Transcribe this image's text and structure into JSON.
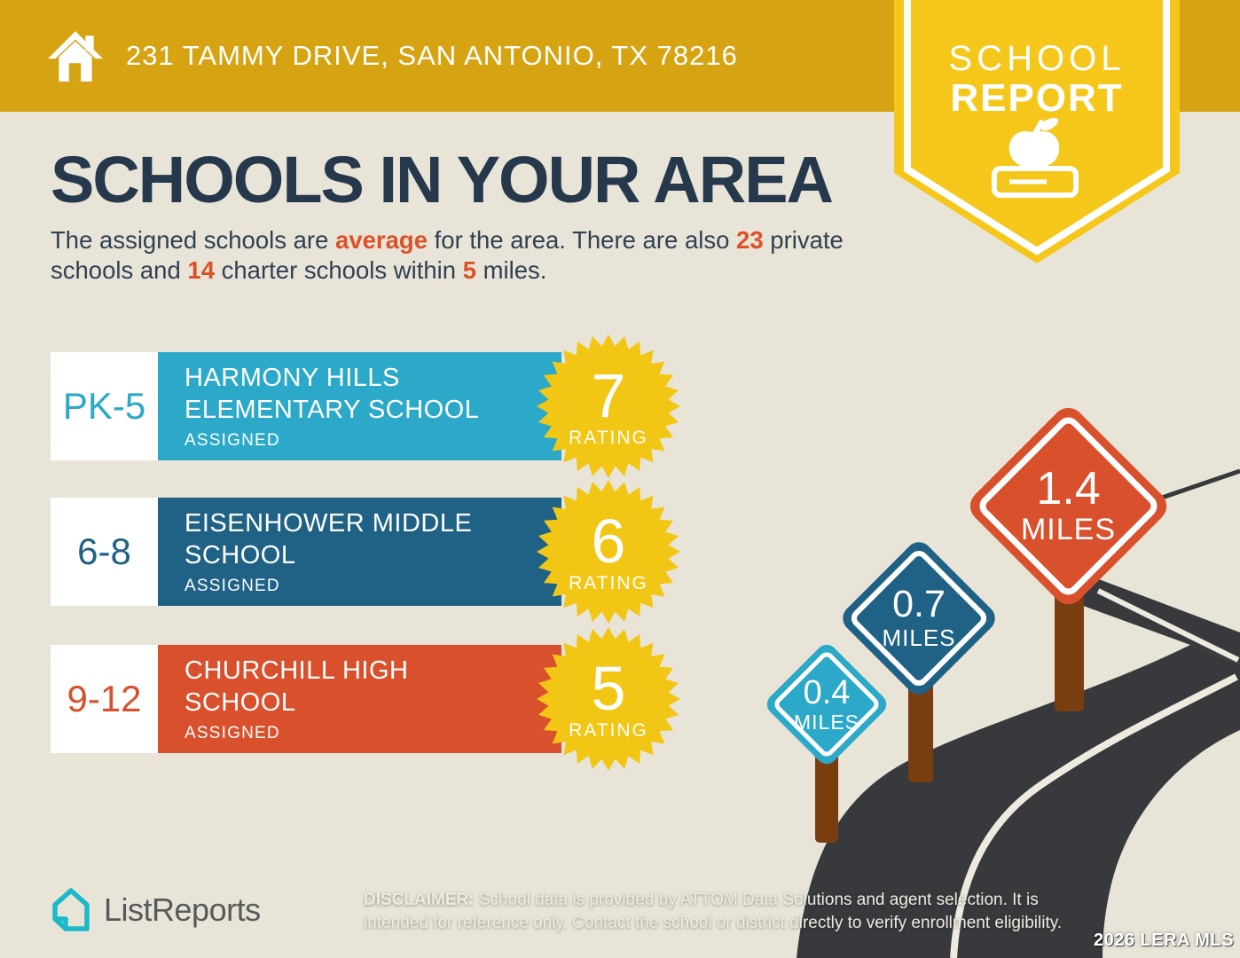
{
  "colors": {
    "background": "#E9E4D8",
    "header_gold": "#D6A413",
    "badge_yellow": "#F5C71B",
    "rating_badge": "#F2C614",
    "navy": "#26384B",
    "accent_orange": "#DC5228",
    "elementary": "#2CA9C8",
    "middle": "#1F6286",
    "high": "#D9502C",
    "road": "#37393C",
    "road_line": "#EFEAE0",
    "post_brown": "#7A3D10",
    "logo_teal": "#1CB9C8",
    "white": "#FFFFFF"
  },
  "header": {
    "address": "231 TAMMY DRIVE, SAN ANTONIO, TX 78216",
    "badge_line1": "SCHOOL",
    "badge_line2": "REPORT"
  },
  "main": {
    "title": "SCHOOLS IN YOUR AREA",
    "subtitle": {
      "seg1": "The assigned schools are ",
      "seg2": "average",
      "seg3": " for the area. There are also ",
      "seg4": "23",
      "seg5": " private schools and ",
      "seg6": "14",
      "seg7": " charter schools within ",
      "seg8": "5",
      "seg9": " miles."
    }
  },
  "schools": [
    {
      "grades": "PK-5",
      "name_line1": "HARMONY HILLS",
      "name_line2": "ELEMENTARY SCHOOL",
      "status": "ASSIGNED",
      "rating": "7",
      "rating_label": "RATING",
      "color": "#2CA9C8"
    },
    {
      "grades": "6-8",
      "name_line1": "EISENHOWER MIDDLE",
      "name_line2": "SCHOOL",
      "status": "ASSIGNED",
      "rating": "6",
      "rating_label": "RATING",
      "color": "#1F6286"
    },
    {
      "grades": "9-12",
      "name_line1": "CHURCHILL HIGH",
      "name_line2": "SCHOOL",
      "status": "ASSIGNED",
      "rating": "5",
      "rating_label": "RATING",
      "color": "#D9502C"
    }
  ],
  "signs": [
    {
      "value": "0.4",
      "unit": "MILES",
      "color": "#2CA9C8"
    },
    {
      "value": "0.7",
      "unit": "MILES",
      "color": "#1F6286"
    },
    {
      "value": "1.4",
      "unit": "MILES",
      "color": "#D9502C"
    }
  ],
  "footer": {
    "brand": "ListReports",
    "disclaimer_label": "DISCLAIMER:",
    "disclaimer_text": " School data is provided by ATTOM Data Solutions and agent selection. It is intended for reference only. Contact the school or district directly to verify enrollment eligibility.",
    "watermark": "2026 LERA MLS"
  }
}
